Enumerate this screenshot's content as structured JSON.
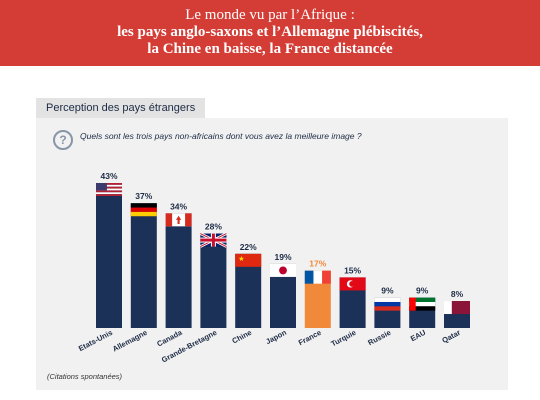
{
  "header": {
    "line1": "Le monde vu par l’Afrique :",
    "line2": "les pays anglo-saxons et l’Allemagne plébiscités,",
    "line3": "la Chine en baisse, la France distancée"
  },
  "tab_label": "Perception des pays étrangers",
  "question_icon": "question-mark-circle-icon",
  "question": "Quels sont les trois pays non-africains dont vous avez la meilleure image ?",
  "note": "(Citations spontanées)",
  "colors": {
    "header_bg": "#d43d36",
    "bar": "#1b3157",
    "highlight_bar": "#f08a3a",
    "highlight_label": "#f08a3a",
    "value_text": "#1d2b45"
  },
  "chart_data": {
    "type": "bar",
    "categories": [
      "Etats-Unis",
      "Allemagne",
      "Canada",
      "Grande-Bretagne",
      "Chine",
      "Japon",
      "France",
      "Turquie",
      "Russie",
      "EAU",
      "Qatar"
    ],
    "values": [
      43,
      37,
      34,
      28,
      22,
      19,
      17,
      15,
      9,
      9,
      8
    ],
    "value_labels": [
      "43%",
      "37%",
      "34%",
      "28%",
      "22%",
      "19%",
      "17%",
      "15%",
      "9%",
      "9%",
      "8%"
    ],
    "highlight": "France",
    "flags": [
      "us-flag-icon",
      "germany-flag-icon",
      "canada-flag-icon",
      "uk-flag-icon",
      "china-flag-icon",
      "japan-flag-icon",
      "france-flag-icon",
      "turkey-flag-icon",
      "russia-flag-icon",
      "uae-flag-icon",
      "qatar-flag-icon"
    ],
    "ylim": [
      0,
      43
    ],
    "grid": false,
    "legend": "none"
  }
}
